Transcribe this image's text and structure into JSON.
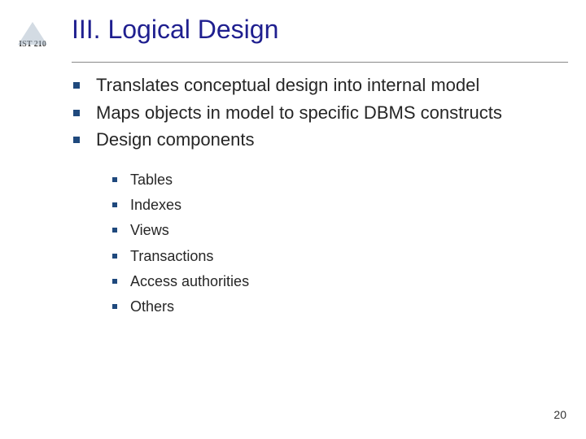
{
  "logo": {
    "label": "IST 210"
  },
  "title": "III. Logical Design",
  "bullets": [
    {
      "text": "Translates conceptual design into internal model"
    },
    {
      "text": "Maps objects in model to specific DBMS constructs"
    },
    {
      "text": "Design components"
    }
  ],
  "subBullets": [
    {
      "text": "Tables"
    },
    {
      "text": "Indexes"
    },
    {
      "text": "Views"
    },
    {
      "text": "Transactions"
    },
    {
      "text": "Access authorities"
    },
    {
      "text": "Others"
    }
  ],
  "pageNumber": "20",
  "colors": {
    "titleColor": "#1f1f8f",
    "bulletColor": "#1f497d",
    "textColor": "#262626",
    "background": "#ffffff"
  },
  "typography": {
    "titleFontSize": 32,
    "mainFontSize": 22,
    "subFontSize": 18,
    "pageNumFontSize": 14,
    "fontFamily": "Verdana"
  },
  "layout": {
    "bulletSquareMain": 8,
    "bulletSquareSub": 6
  }
}
